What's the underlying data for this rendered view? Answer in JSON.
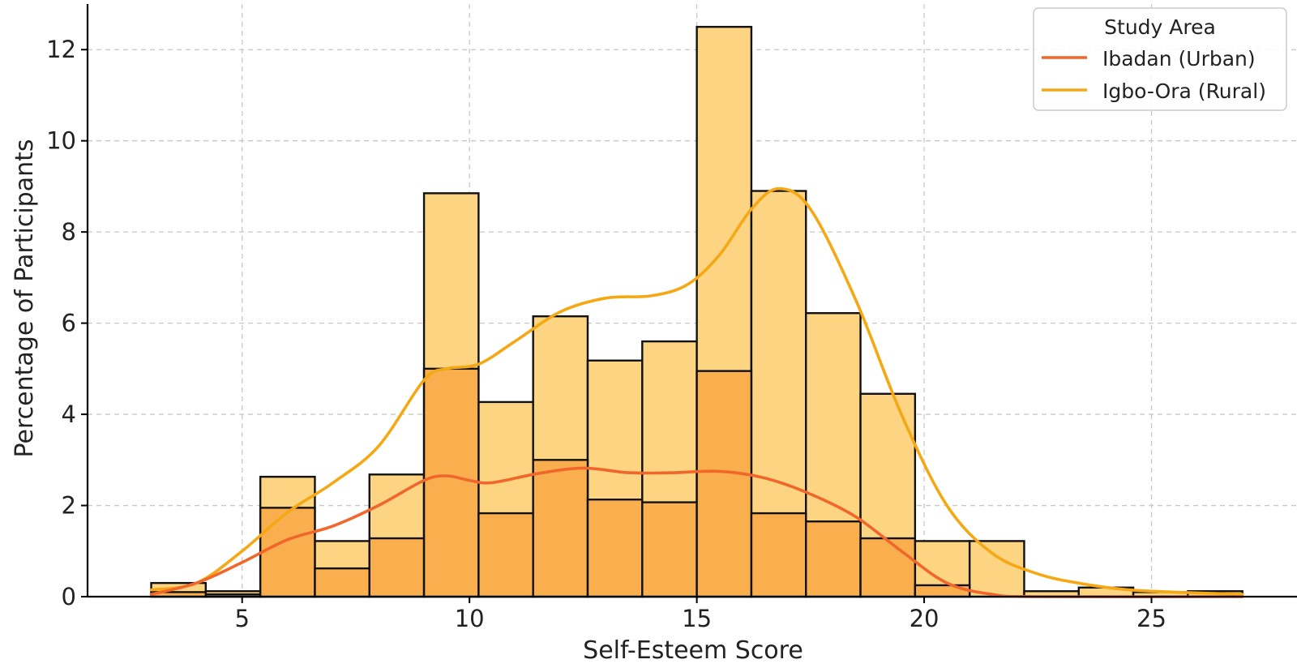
{
  "chart_data": {
    "type": "histogram",
    "xlabel": "Self-Esteem Score",
    "ylabel": "Percentage of Participants",
    "xlim": [
      1.6,
      28.2
    ],
    "ylim": [
      0,
      13
    ],
    "x_ticks": [
      5,
      10,
      15,
      20,
      25
    ],
    "y_ticks": [
      0,
      2,
      4,
      6,
      8,
      10,
      12
    ],
    "grid": true,
    "legend": {
      "title": "Study Area",
      "position": "top-right"
    },
    "bin_width": 1.2,
    "bins_start": [
      3.0,
      4.2,
      5.4,
      6.6,
      7.8,
      9.0,
      10.2,
      11.4,
      12.6,
      13.8,
      15.0,
      16.2,
      17.4,
      18.6,
      19.8,
      21.0,
      22.2,
      23.4,
      24.6,
      25.8
    ],
    "series": [
      {
        "name": "Ibadan (Urban)",
        "color": "#f1662a",
        "bar_fill": "#f8ab48",
        "values": [
          0.1,
          0.05,
          1.95,
          0.62,
          1.28,
          5.0,
          1.83,
          3.0,
          2.13,
          2.07,
          4.95,
          1.83,
          1.65,
          1.28,
          0.25,
          0.0,
          0.0,
          0.0,
          0.0,
          0.0
        ],
        "kde": [
          [
            3.0,
            0.05
          ],
          [
            4.0,
            0.3
          ],
          [
            5.0,
            0.75
          ],
          [
            6.0,
            1.25
          ],
          [
            7.0,
            1.55
          ],
          [
            8.0,
            2.0
          ],
          [
            9.0,
            2.55
          ],
          [
            9.5,
            2.65
          ],
          [
            10.0,
            2.55
          ],
          [
            10.5,
            2.5
          ],
          [
            11.5,
            2.7
          ],
          [
            12.5,
            2.82
          ],
          [
            13.5,
            2.72
          ],
          [
            14.5,
            2.72
          ],
          [
            15.5,
            2.75
          ],
          [
            16.5,
            2.6
          ],
          [
            17.5,
            2.25
          ],
          [
            18.5,
            1.75
          ],
          [
            19.5,
            1.0
          ],
          [
            20.5,
            0.3
          ],
          [
            21.5,
            0.05
          ],
          [
            22.5,
            0.0
          ],
          [
            27.0,
            0.0
          ]
        ]
      },
      {
        "name": "Igbo-Ora (Rural)",
        "color": "#f5a814",
        "bar_fill": "#fcd482",
        "values": [
          0.3,
          0.12,
          2.63,
          1.22,
          2.68,
          8.85,
          4.27,
          6.15,
          5.18,
          5.6,
          12.5,
          8.9,
          6.22,
          4.45,
          1.22,
          1.22,
          0.12,
          0.2,
          0.1,
          0.12
        ],
        "kde": [
          [
            3.0,
            0.15
          ],
          [
            4.0,
            0.3
          ],
          [
            5.0,
            1.0
          ],
          [
            6.0,
            1.85
          ],
          [
            7.0,
            2.5
          ],
          [
            8.0,
            3.3
          ],
          [
            9.0,
            4.75
          ],
          [
            9.5,
            5.0
          ],
          [
            10.2,
            5.1
          ],
          [
            11.0,
            5.6
          ],
          [
            12.0,
            6.25
          ],
          [
            13.0,
            6.55
          ],
          [
            14.0,
            6.6
          ],
          [
            14.8,
            6.85
          ],
          [
            15.5,
            7.5
          ],
          [
            16.2,
            8.5
          ],
          [
            16.8,
            8.95
          ],
          [
            17.5,
            8.5
          ],
          [
            18.5,
            6.5
          ],
          [
            19.5,
            4.0
          ],
          [
            20.5,
            2.0
          ],
          [
            21.5,
            0.95
          ],
          [
            22.5,
            0.5
          ],
          [
            23.5,
            0.28
          ],
          [
            24.5,
            0.15
          ],
          [
            25.5,
            0.1
          ],
          [
            27.0,
            0.05
          ]
        ]
      }
    ]
  }
}
